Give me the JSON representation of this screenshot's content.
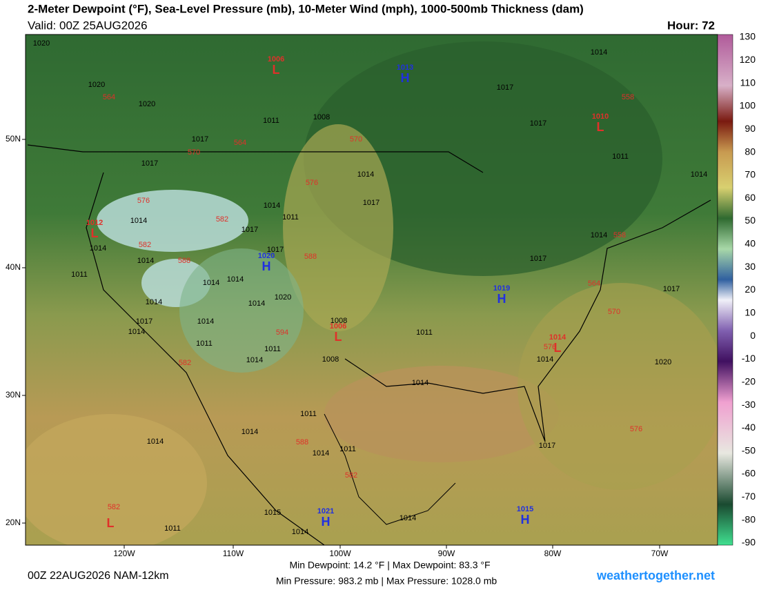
{
  "header": {
    "title": "2-Meter Dewpoint (°F), Sea-Level Pressure (mb), 10-Meter Wind (mph), 1000-500mb Thickness (dam)",
    "valid": "Valid: 00Z 25AUG2026",
    "hour": "Hour: 72"
  },
  "colorbar": {
    "labels": [
      130,
      120,
      110,
      100,
      90,
      80,
      70,
      60,
      50,
      40,
      30,
      20,
      10,
      0,
      -10,
      -20,
      -30,
      -40,
      -50,
      -60,
      -70,
      -80,
      -90
    ]
  },
  "axes": {
    "lat": [
      "50N",
      "40N",
      "30N",
      "20N"
    ],
    "lon": [
      "120W",
      "110W",
      "100W",
      "90W",
      "80W",
      "70W"
    ]
  },
  "centers": [
    {
      "letter": "L",
      "pressure": "1006"
    },
    {
      "letter": "H",
      "pressure": "1013"
    },
    {
      "letter": "L",
      "pressure": "1010"
    },
    {
      "letter": "L",
      "pressure": "1012"
    },
    {
      "letter": "H",
      "pressure": "1020"
    },
    {
      "letter": "H",
      "pressure": "1019"
    },
    {
      "letter": "L",
      "pressure": "1006"
    },
    {
      "letter": "L",
      "pressure": "1014"
    },
    {
      "letter": "H",
      "pressure": "1021"
    },
    {
      "letter": "H",
      "pressure": "1015"
    },
    {
      "letter": "L"
    }
  ],
  "isobar_labels": [
    "1020",
    "1020",
    "1020",
    "1011",
    "1008",
    "1017",
    "1017",
    "1017",
    "1017",
    "1014",
    "1011",
    "1014",
    "1014",
    "1017",
    "1014",
    "1014",
    "1011",
    "1017",
    "1017",
    "1014",
    "1014",
    "1011",
    "1014",
    "1014",
    "1020",
    "1014",
    "1014",
    "1017",
    "1014",
    "1014",
    "1011",
    "1011",
    "1014",
    "1008",
    "1008",
    "1011",
    "1014",
    "1014",
    "1014",
    "1017",
    "1017",
    "1020",
    "1011",
    "1014",
    "1014",
    "1011",
    "1017",
    "1014",
    "1015",
    "1014",
    "1014",
    "1011"
  ],
  "thickness_labels": [
    "564",
    "564",
    "570",
    "570",
    "576",
    "576",
    "582",
    "582",
    "588",
    "588",
    "594",
    "582",
    "588",
    "582",
    "570",
    "564",
    "558",
    "558",
    "576",
    "576",
    "582"
  ],
  "footer": {
    "run": "00Z 22AUG2026 NAM-12km",
    "dewpoint": "Min Dewpoint:  14.2 °F | Max Dewpoint:  83.3 °F",
    "pressure": "Min Pressure: 983.2 mb | Max Pressure: 1028.0 mb",
    "site": "weathertogether.net"
  }
}
